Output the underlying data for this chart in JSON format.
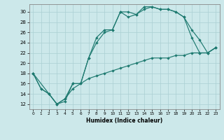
{
  "xlabel": "Humidex (Indice chaleur)",
  "bg_color": "#cce8ea",
  "line_color": "#1e7a70",
  "grid_color": "#aacfd2",
  "xlim": [
    -0.5,
    23.5
  ],
  "ylim": [
    11,
    31.5
  ],
  "xticks": [
    0,
    1,
    2,
    3,
    4,
    5,
    6,
    7,
    8,
    9,
    10,
    11,
    12,
    13,
    14,
    15,
    16,
    17,
    18,
    19,
    20,
    21,
    22,
    23
  ],
  "yticks": [
    12,
    14,
    16,
    18,
    20,
    22,
    24,
    26,
    28,
    30
  ],
  "line1_x": [
    0,
    1,
    2,
    3,
    4,
    5,
    6,
    7,
    8,
    9,
    10,
    11,
    12,
    13,
    14,
    15,
    16,
    17,
    18,
    19,
    20,
    21,
    22,
    23
  ],
  "line1_y": [
    18,
    15,
    14,
    12,
    12.5,
    16,
    16,
    21,
    25,
    26.5,
    26.5,
    30,
    29,
    29.5,
    31,
    31,
    30.5,
    30.5,
    30,
    29,
    25,
    22,
    22,
    23
  ],
  "line2_x": [
    0,
    2,
    3,
    4,
    5,
    6,
    7,
    8,
    9,
    10,
    11,
    12,
    13,
    14,
    15,
    16,
    17,
    18,
    19,
    20,
    21,
    22,
    23
  ],
  "line2_y": [
    18,
    14,
    12,
    13,
    16,
    16,
    21,
    24,
    26,
    26.5,
    30,
    30,
    29.5,
    30.5,
    31,
    30.5,
    30.5,
    30,
    29,
    26.5,
    24.5,
    22,
    23
  ],
  "line3_x": [
    0,
    1,
    2,
    3,
    4,
    5,
    6,
    7,
    8,
    9,
    10,
    11,
    12,
    13,
    14,
    15,
    16,
    17,
    18,
    19,
    20,
    21,
    22,
    23
  ],
  "line3_y": [
    18,
    15,
    14,
    12,
    13,
    15,
    16,
    17,
    17.5,
    18,
    18.5,
    19,
    19.5,
    20,
    20.5,
    21,
    21,
    21,
    21.5,
    21.5,
    22,
    22,
    22,
    23
  ]
}
